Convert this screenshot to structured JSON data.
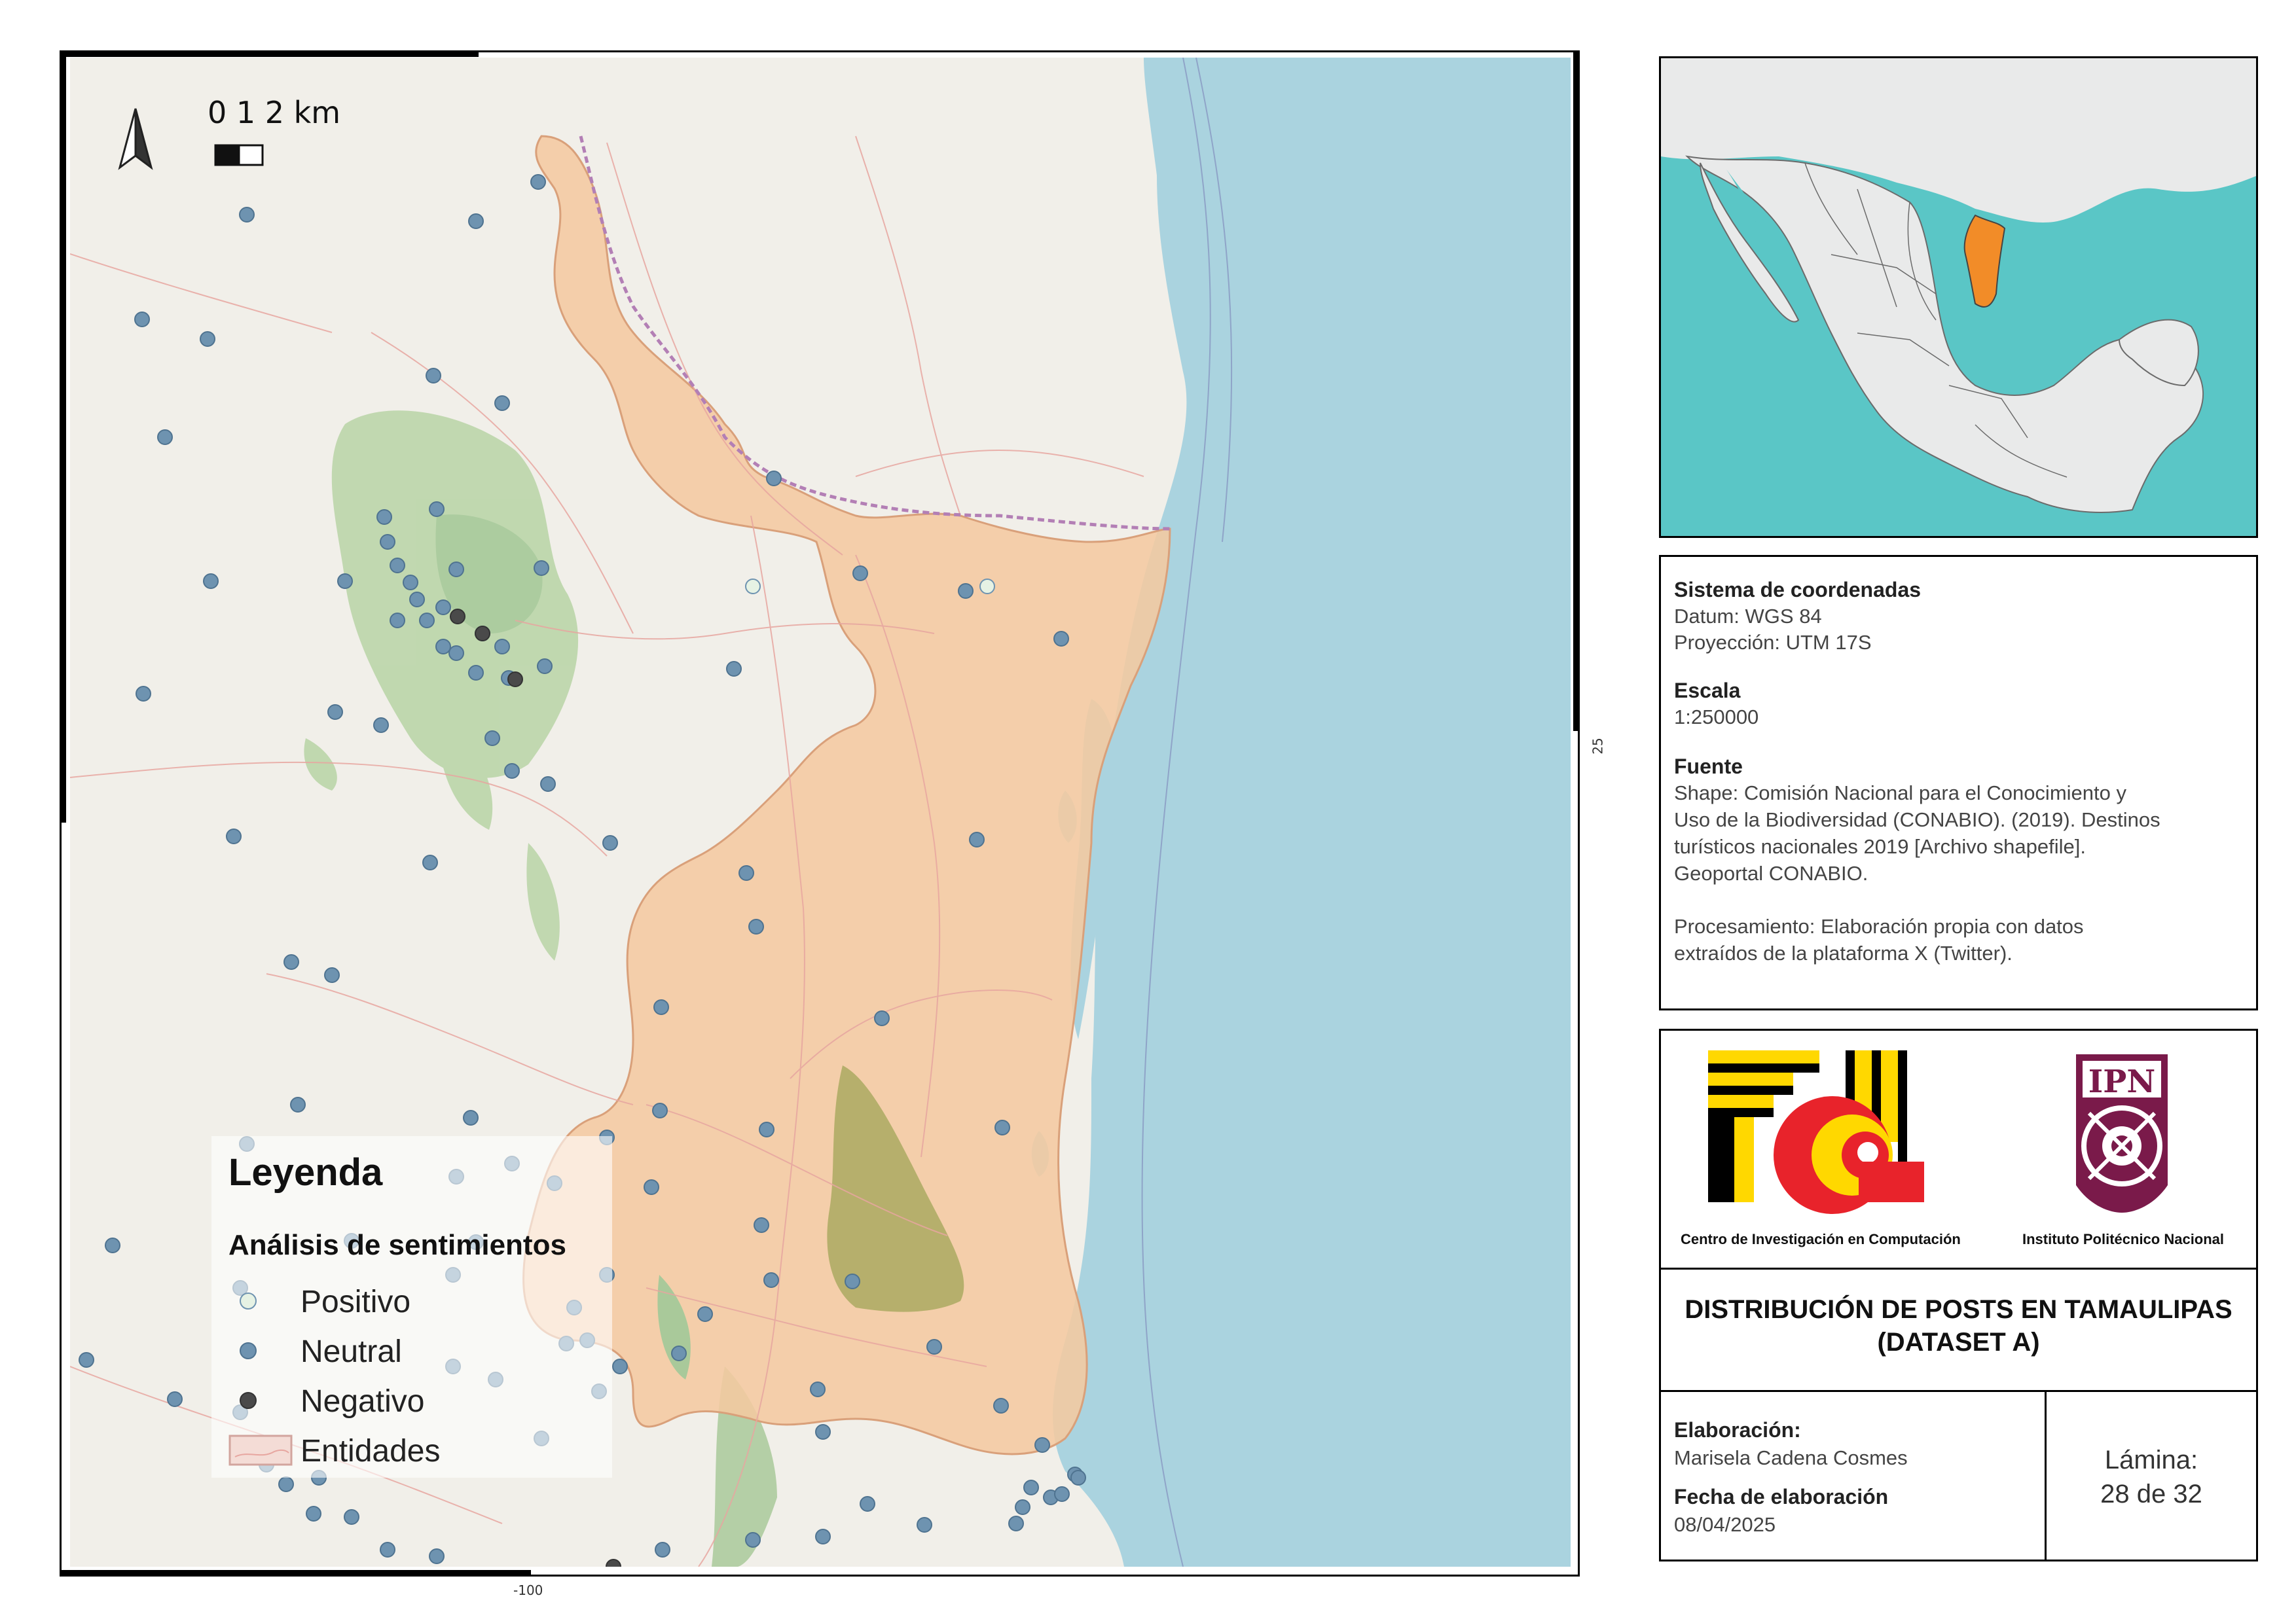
{
  "map": {
    "scale_bar_text": "0 1 2 km",
    "coord_right": "25",
    "coord_bottom": "-100",
    "colors": {
      "land": "#f1efe9",
      "sea": "#aad3df",
      "tamaulipas_fill": "#f4c9a0",
      "tamaulipas_stroke": "#d9a07a",
      "neutral_point": "#6e93b0",
      "negative_point": "#4a4a4a",
      "positive_point": "#e6f2e4",
      "vegetation": "#a9c99a",
      "vegetation_dark": "#9aa65c"
    }
  },
  "legend": {
    "title": "Leyenda",
    "subtitle": "Análisis de sentimientos",
    "items": [
      {
        "label": "Positivo",
        "symbol": "positive-point"
      },
      {
        "label": "Neutral",
        "symbol": "neutral-point"
      },
      {
        "label": "Negativo",
        "symbol": "negative-point"
      },
      {
        "label": "Entidades",
        "symbol": "entity-polygon"
      }
    ]
  },
  "info": {
    "coord_system_title": "Sistema de coordenadas",
    "datum": "Datum: WGS 84",
    "projection": "Proyección: UTM 17S",
    "scale_title": "Escala",
    "scale_value": "1:250000",
    "source_title": "Fuente",
    "source_lines": [
      "Shape: Comisión Nacional para el Conocimiento y",
      "Uso de la Biodiversidad (CONABIO). (2019). Destinos",
      "turísticos nacionales 2019 [Archivo shapefile].",
      "Geoportal CONABIO."
    ],
    "processing_lines": [
      "Procesamiento: Elaboración propia con datos",
      "extraídos de la plataforma X (Twitter)."
    ]
  },
  "logos": {
    "cic_caption": "Centro de Investigación en Computación",
    "ipn_caption": "Instituto Politécnico Nacional",
    "ipn_letters": "IPN"
  },
  "title": {
    "line1": "DISTRIBUCIÓN DE POSTS EN TAMAULIPAS",
    "line2": "(DATASET A)"
  },
  "footer": {
    "elaboration_title": "Elaboración:",
    "author": "Marisela Cadena Cosmes",
    "date_title": "Fecha de elaboración",
    "date": "08/04/2025",
    "sheet_label": "Lámina:",
    "sheet_value": "28 de 32"
  }
}
